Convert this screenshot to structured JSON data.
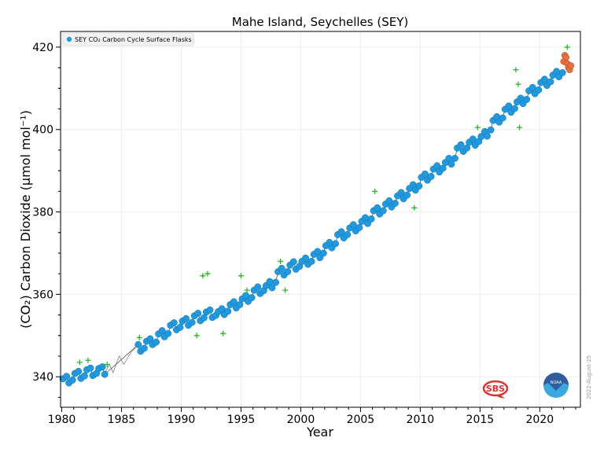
{
  "chart_data": {
    "type": "scatter",
    "title": "Mahe Island, Seychelles (SEY)",
    "xlabel": "Year",
    "ylabel": "(CO₂) Carbon Dioxide (μmol mol⁻¹)",
    "xlim": [
      1979.9,
      2023.4
    ],
    "ylim": [
      332.6,
      423.8
    ],
    "xticks": [
      "1980",
      "1985",
      "1990",
      "1995",
      "2000",
      "2005",
      "2010",
      "2015",
      "2020"
    ],
    "yticks": [
      "340",
      "360",
      "380",
      "400",
      "420"
    ],
    "grid": true,
    "legend": {
      "placement": "top-left",
      "entries": [
        "SEY CO₂ Carbon Cycle Surface Flasks"
      ]
    },
    "date_stamp": "2022-August-25",
    "logos": {
      "left": "SBS",
      "right": "NOAA"
    },
    "colors": {
      "main": "#1f9ae0",
      "preliminary": "#e8703a",
      "flagged": "#22bb22",
      "interpolated": "#999999"
    },
    "series": [
      {
        "name": "SEY CO₂ Carbon Cycle Surface Flasks",
        "role": "main",
        "points": [
          [
            1980.1,
            339.5
          ],
          [
            1980.4,
            340.1
          ],
          [
            1980.6,
            338.5
          ],
          [
            1980.9,
            339.2
          ],
          [
            1981.1,
            340.8
          ],
          [
            1981.4,
            341.3
          ],
          [
            1981.6,
            339.6
          ],
          [
            1981.9,
            340.2
          ],
          [
            1982.1,
            341.7
          ],
          [
            1982.4,
            342.1
          ],
          [
            1982.6,
            340.3
          ],
          [
            1982.9,
            340.8
          ],
          [
            1983.1,
            342.0
          ],
          [
            1983.4,
            342.4
          ],
          [
            1983.6,
            340.6
          ],
          [
            1986.4,
            347.8
          ],
          [
            1986.6,
            346.2
          ],
          [
            1986.9,
            346.9
          ],
          [
            1987.1,
            348.6
          ],
          [
            1987.4,
            349.2
          ],
          [
            1987.6,
            347.8
          ],
          [
            1987.9,
            348.4
          ],
          [
            1988.1,
            350.4
          ],
          [
            1988.4,
            351.2
          ],
          [
            1988.6,
            349.7
          ],
          [
            1988.9,
            350.5
          ],
          [
            1989.1,
            352.5
          ],
          [
            1989.4,
            353.1
          ],
          [
            1989.6,
            351.4
          ],
          [
            1989.9,
            352.0
          ],
          [
            1990.1,
            353.5
          ],
          [
            1990.4,
            354.1
          ],
          [
            1990.6,
            352.5
          ],
          [
            1990.9,
            353.2
          ],
          [
            1991.1,
            354.8
          ],
          [
            1991.4,
            355.4
          ],
          [
            1991.6,
            353.6
          ],
          [
            1991.9,
            354.3
          ],
          [
            1992.1,
            355.7
          ],
          [
            1992.4,
            356.2
          ],
          [
            1992.6,
            354.4
          ],
          [
            1992.9,
            354.9
          ],
          [
            1993.1,
            355.8
          ],
          [
            1993.4,
            356.5
          ],
          [
            1993.6,
            355.1
          ],
          [
            1993.9,
            355.9
          ],
          [
            1994.1,
            357.5
          ],
          [
            1994.4,
            358.2
          ],
          [
            1994.6,
            356.7
          ],
          [
            1994.9,
            357.5
          ],
          [
            1995.1,
            358.9
          ],
          [
            1995.4,
            359.7
          ],
          [
            1995.6,
            358.3
          ],
          [
            1995.9,
            359.2
          ],
          [
            1996.1,
            361.0
          ],
          [
            1996.4,
            361.8
          ],
          [
            1996.6,
            360.2
          ],
          [
            1996.9,
            360.9
          ],
          [
            1997.1,
            362.1
          ],
          [
            1997.4,
            363.1
          ],
          [
            1997.6,
            361.6
          ],
          [
            1997.9,
            362.9
          ],
          [
            1998.1,
            365.5
          ],
          [
            1998.4,
            366.3
          ],
          [
            1998.6,
            364.7
          ],
          [
            1998.9,
            365.5
          ],
          [
            1999.1,
            367.1
          ],
          [
            1999.4,
            367.9
          ],
          [
            1999.6,
            366.1
          ],
          [
            1999.9,
            366.8
          ],
          [
            2000.1,
            368.0
          ],
          [
            2000.4,
            368.8
          ],
          [
            2000.6,
            367.3
          ],
          [
            2000.9,
            368.0
          ],
          [
            2001.1,
            369.7
          ],
          [
            2001.4,
            370.4
          ],
          [
            2001.6,
            368.9
          ],
          [
            2001.9,
            370.0
          ],
          [
            2002.1,
            371.8
          ],
          [
            2002.4,
            372.6
          ],
          [
            2002.6,
            371.3
          ],
          [
            2002.9,
            372.3
          ],
          [
            2003.1,
            374.5
          ],
          [
            2003.4,
            375.2
          ],
          [
            2003.6,
            373.7
          ],
          [
            2003.9,
            374.5
          ],
          [
            2004.1,
            376.1
          ],
          [
            2004.4,
            376.9
          ],
          [
            2004.6,
            375.4
          ],
          [
            2004.9,
            376.2
          ],
          [
            2005.1,
            377.7
          ],
          [
            2005.4,
            378.6
          ],
          [
            2005.6,
            377.2
          ],
          [
            2005.9,
            378.3
          ],
          [
            2006.1,
            380.3
          ],
          [
            2006.4,
            381.0
          ],
          [
            2006.6,
            379.5
          ],
          [
            2006.9,
            380.3
          ],
          [
            2007.1,
            381.9
          ],
          [
            2007.4,
            382.7
          ],
          [
            2007.6,
            381.2
          ],
          [
            2007.9,
            382.1
          ],
          [
            2008.1,
            383.9
          ],
          [
            2008.4,
            384.7
          ],
          [
            2008.6,
            383.2
          ],
          [
            2008.9,
            384.1
          ],
          [
            2009.1,
            385.7
          ],
          [
            2009.4,
            386.6
          ],
          [
            2009.6,
            385.3
          ],
          [
            2009.9,
            386.3
          ],
          [
            2010.1,
            388.4
          ],
          [
            2010.4,
            389.2
          ],
          [
            2010.6,
            387.7
          ],
          [
            2010.9,
            388.6
          ],
          [
            2011.1,
            390.4
          ],
          [
            2011.4,
            391.2
          ],
          [
            2011.6,
            389.7
          ],
          [
            2011.9,
            390.6
          ],
          [
            2012.1,
            392.0
          ],
          [
            2012.4,
            393.0
          ],
          [
            2012.6,
            391.6
          ],
          [
            2012.9,
            393.0
          ],
          [
            2013.1,
            395.5
          ],
          [
            2013.4,
            396.3
          ],
          [
            2013.6,
            394.7
          ],
          [
            2013.9,
            395.5
          ],
          [
            2014.1,
            396.9
          ],
          [
            2014.4,
            397.7
          ],
          [
            2014.6,
            396.2
          ],
          [
            2014.9,
            397.1
          ],
          [
            2015.1,
            398.3
          ],
          [
            2015.4,
            399.5
          ],
          [
            2015.6,
            398.4
          ],
          [
            2015.9,
            399.9
          ],
          [
            2016.1,
            402.2
          ],
          [
            2016.4,
            403.1
          ],
          [
            2016.6,
            401.8
          ],
          [
            2016.9,
            402.8
          ],
          [
            2017.1,
            404.9
          ],
          [
            2017.4,
            405.7
          ],
          [
            2017.6,
            404.2
          ],
          [
            2017.9,
            405.1
          ],
          [
            2018.1,
            406.7
          ],
          [
            2018.4,
            407.6
          ],
          [
            2018.6,
            406.3
          ],
          [
            2018.9,
            407.3
          ],
          [
            2019.1,
            409.4
          ],
          [
            2019.4,
            410.2
          ],
          [
            2019.6,
            408.7
          ],
          [
            2019.9,
            409.6
          ],
          [
            2020.1,
            411.4
          ],
          [
            2020.4,
            412.2
          ],
          [
            2020.6,
            410.7
          ],
          [
            2020.9,
            411.6
          ],
          [
            2021.1,
            413.2
          ],
          [
            2021.4,
            414.1
          ],
          [
            2021.6,
            412.8
          ],
          [
            2021.9,
            413.8
          ]
        ]
      },
      {
        "role": "preliminary",
        "points": [
          [
            2022.0,
            416.5
          ],
          [
            2022.1,
            418.0
          ],
          [
            2022.2,
            417.5
          ],
          [
            2022.3,
            416.0
          ],
          [
            2022.4,
            415.0
          ],
          [
            2022.5,
            414.5
          ],
          [
            2022.6,
            415.5
          ]
        ]
      },
      {
        "role": "flagged",
        "points": [
          [
            1981.5,
            343.5
          ],
          [
            1982.2,
            344.0
          ],
          [
            1983.8,
            343.0
          ],
          [
            1986.5,
            349.5
          ],
          [
            1991.3,
            350.0
          ],
          [
            1991.8,
            364.5
          ],
          [
            1992.2,
            365.0
          ],
          [
            1993.5,
            350.5
          ],
          [
            1995.0,
            364.5
          ],
          [
            1995.5,
            361.0
          ],
          [
            1998.3,
            368.0
          ],
          [
            1998.7,
            361.0
          ],
          [
            2006.2,
            385.0
          ],
          [
            2009.5,
            381.0
          ],
          [
            2014.8,
            400.5
          ],
          [
            2018.0,
            414.5
          ],
          [
            2018.2,
            411.0
          ],
          [
            2018.3,
            400.5
          ],
          [
            2022.3,
            420.0
          ]
        ]
      },
      {
        "role": "interpolated",
        "points": [
          [
            1983.6,
            341.0
          ],
          [
            1984.0,
            343.0
          ],
          [
            1984.3,
            341.0
          ],
          [
            1984.8,
            345.0
          ],
          [
            1985.2,
            343.0
          ],
          [
            1985.8,
            346.0
          ],
          [
            1986.2,
            347.0
          ]
        ]
      }
    ]
  }
}
